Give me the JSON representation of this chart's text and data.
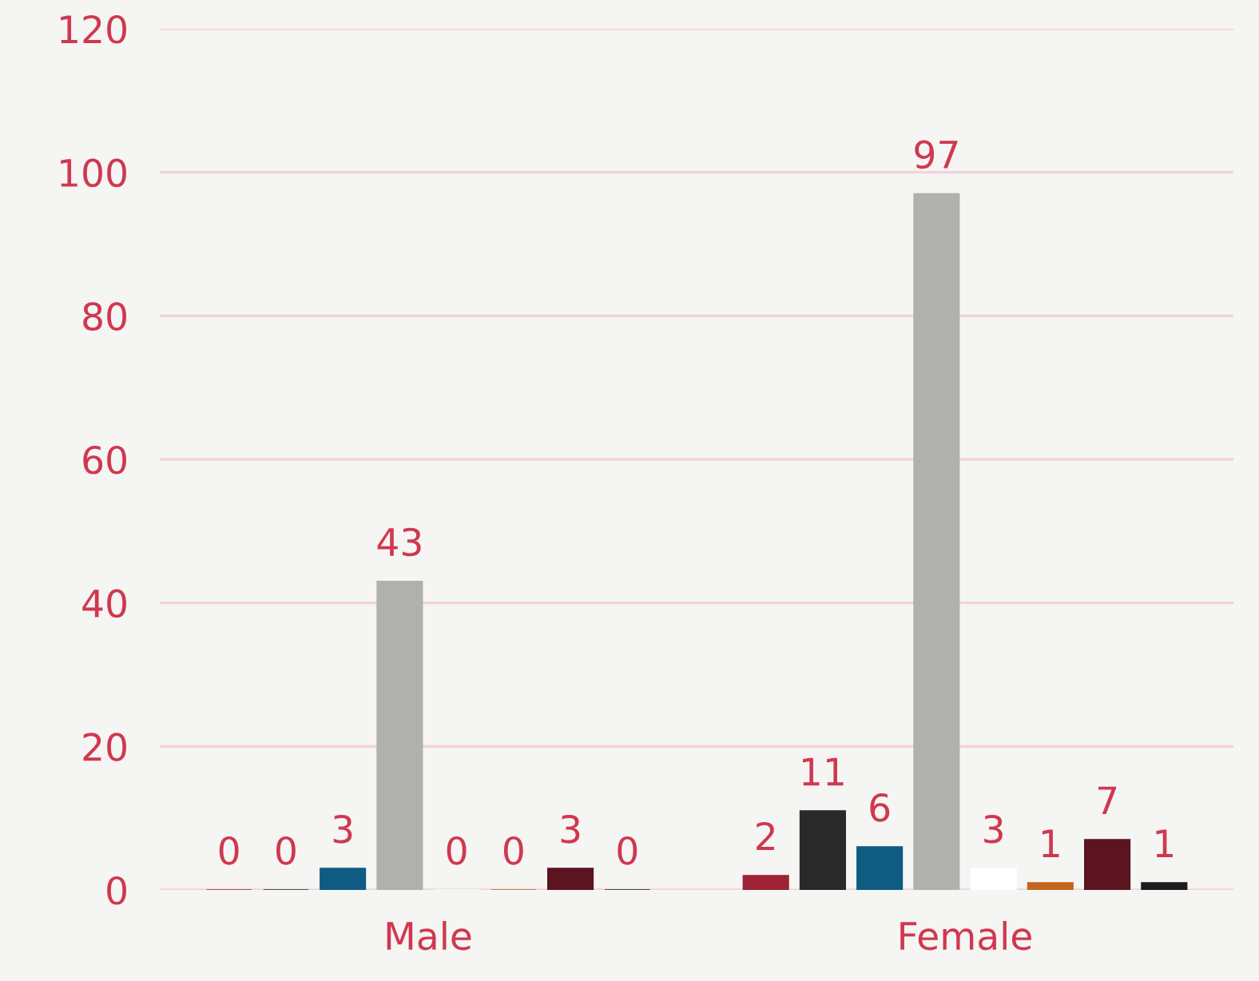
{
  "chart_data": {
    "type": "bar",
    "categories": [
      "Male",
      "Female"
    ],
    "series": [
      {
        "color": "#9e2236",
        "values": [
          0,
          2
        ]
      },
      {
        "color": "#2a2a2a",
        "values": [
          0,
          11
        ]
      },
      {
        "color": "#0f5b82",
        "values": [
          3,
          6
        ]
      },
      {
        "color": "#b0b0ae",
        "values": [
          43,
          97
        ]
      },
      {
        "color": "#ffffff",
        "values": [
          0,
          3
        ]
      },
      {
        "color": "#c2661f",
        "values": [
          0,
          1
        ]
      },
      {
        "color": "#5b1420",
        "values": [
          3,
          7
        ]
      },
      {
        "color": "#1c1c1c",
        "values": [
          0,
          1
        ]
      }
    ],
    "ylim": [
      0,
      120
    ],
    "yticks": [
      0,
      20,
      40,
      60,
      80,
      100,
      120
    ],
    "grid": "y",
    "data_labels": true,
    "legend": false
  }
}
